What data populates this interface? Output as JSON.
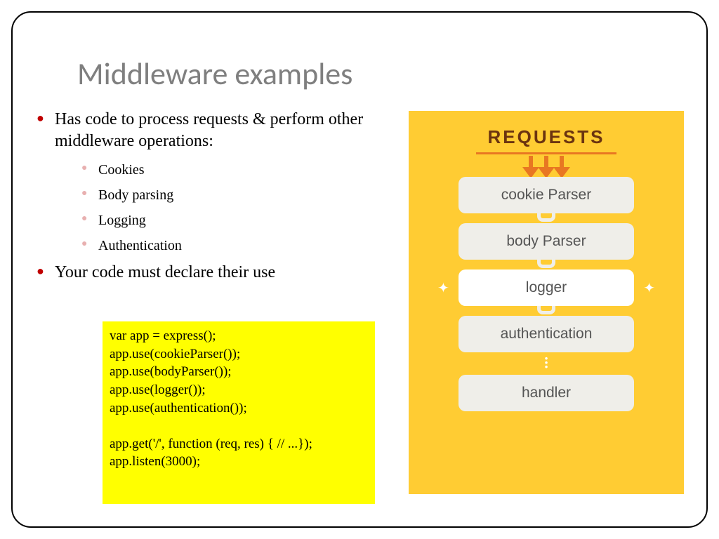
{
  "title": "Middleware examples",
  "bullets": {
    "item1": "Has code to process requests & perform other middleware operations:",
    "sub": {
      "a": "Cookies",
      "b": "Body parsing",
      "c": "Logging",
      "d": "Authentication"
    },
    "item2": "Your code must declare their use"
  },
  "code": "var app = express();\napp.use(cookieParser());\napp.use(bodyParser());\napp.use(logger());\napp.use(authentication());\n\napp.get('/', function (req, res) { // ...});\napp.listen(3000);",
  "diagram": {
    "header": "REQUESTS",
    "header_color": "#6b3410",
    "underline_color": "#e87722",
    "arrow_color": "#e87722",
    "panel_bg": "#ffcc33",
    "box_bg": "#efeee9",
    "box_highlight_bg": "#ffffff",
    "box_text_color": "#555555",
    "nodes": [
      {
        "label": "cookie Parser",
        "highlight": false
      },
      {
        "label": "body Parser",
        "highlight": false
      },
      {
        "label": "logger",
        "highlight": true
      },
      {
        "label": "authentication",
        "highlight": false
      },
      {
        "label": "handler",
        "highlight": false
      }
    ]
  },
  "colors": {
    "title": "#7f7f7f",
    "bullet_l1": "#c00000",
    "bullet_l2": "#e8b0b0",
    "code_bg": "#ffff00",
    "frame_border": "#000000"
  },
  "fonts": {
    "title_family": "Calibri, Arial, sans-serif",
    "title_size_pt": 33,
    "body_family": "Georgia, Times New Roman, serif",
    "body_size_pt": 18,
    "sub_size_pt": 15,
    "code_size_pt": 14,
    "diagram_family": "Arial, sans-serif"
  }
}
